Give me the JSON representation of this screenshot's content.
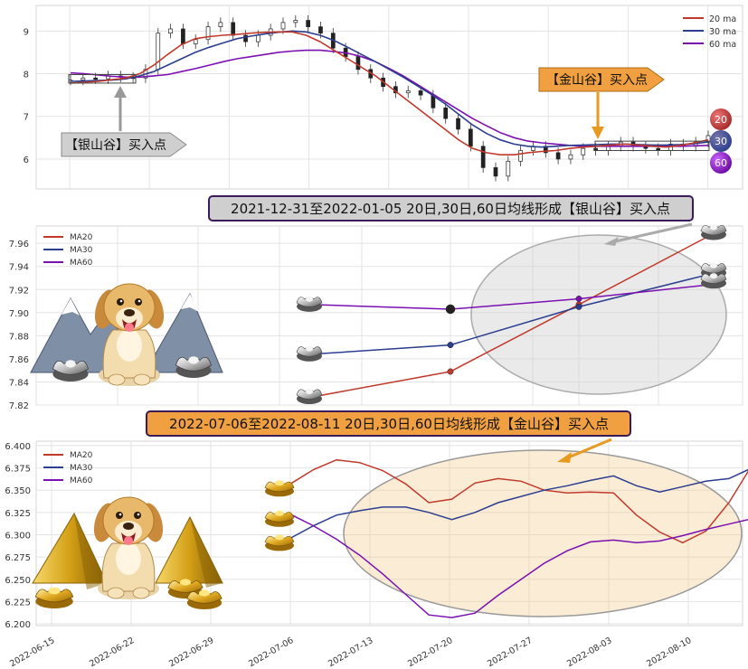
{
  "colors": {
    "ma20": "#c0392b",
    "ma30": "#2c3e8f",
    "ma60": "#7b10b0",
    "silver_banner": "#cfcfcf",
    "gold_banner": "#f0a040",
    "grid": "#e3e3e3"
  },
  "chart_data": [
    {
      "type": "candlestick",
      "name": "overview",
      "ylim": [
        5.3,
        9.6
      ],
      "yticks": [
        "9",
        "8",
        "7",
        "6"
      ],
      "ytick_values": [
        9,
        8,
        7,
        6
      ],
      "legend": [
        "20 ma",
        "30 ma",
        "60 ma"
      ],
      "legend_position": "top-right",
      "ma20": [
        7.78,
        7.8,
        7.82,
        7.86,
        7.9,
        8.0,
        8.2,
        8.45,
        8.68,
        8.82,
        8.87,
        8.9,
        8.92,
        8.95,
        8.97,
        8.98,
        8.98,
        8.9,
        8.75,
        8.55,
        8.35,
        8.15,
        7.95,
        7.7,
        7.45,
        7.2,
        6.95,
        6.7,
        6.45,
        6.25,
        6.15,
        6.1,
        6.1,
        6.15,
        6.18,
        6.2,
        6.25,
        6.28,
        6.3,
        6.33,
        6.35,
        6.33,
        6.3,
        6.28,
        6.32,
        6.38,
        6.45
      ],
      "ma30": [
        7.82,
        7.83,
        7.84,
        7.85,
        7.88,
        7.95,
        8.05,
        8.2,
        8.35,
        8.5,
        8.62,
        8.72,
        8.82,
        8.88,
        8.93,
        8.97,
        9.0,
        8.98,
        8.9,
        8.78,
        8.62,
        8.45,
        8.28,
        8.1,
        7.92,
        7.72,
        7.52,
        7.3,
        7.05,
        6.8,
        6.6,
        6.45,
        6.35,
        6.3,
        6.28,
        6.3,
        6.32,
        6.33,
        6.34,
        6.35,
        6.35,
        6.34,
        6.33,
        6.33,
        6.34,
        6.36,
        6.4
      ],
      "ma60": [
        8.02,
        8.0,
        7.97,
        7.94,
        7.92,
        7.92,
        7.95,
        7.98,
        8.05,
        8.12,
        8.2,
        8.28,
        8.35,
        8.4,
        8.45,
        8.5,
        8.53,
        8.55,
        8.55,
        8.52,
        8.48,
        8.4,
        8.28,
        8.12,
        7.95,
        7.75,
        7.55,
        7.35,
        7.15,
        6.95,
        6.78,
        6.62,
        6.5,
        6.42,
        6.38,
        6.35,
        6.32,
        6.3,
        6.3,
        6.3,
        6.3,
        6.3,
        6.3,
        6.3,
        6.3,
        6.31,
        6.32
      ],
      "candles_close": [
        7.85,
        7.9,
        7.88,
        7.95,
        7.92,
        7.9,
        8.1,
        8.95,
        9.05,
        8.7,
        8.8,
        9.1,
        9.2,
        8.9,
        8.75,
        8.9,
        9.05,
        9.2,
        9.25,
        9.1,
        8.95,
        8.6,
        8.4,
        8.1,
        7.9,
        7.7,
        7.55,
        7.6,
        7.5,
        7.2,
        6.95,
        6.7,
        6.3,
        5.8,
        5.6,
        5.95,
        6.2,
        6.3,
        6.15,
        6.0,
        6.1,
        6.25,
        6.2,
        6.3,
        6.4,
        6.3,
        6.25,
        6.2,
        6.35,
        6.3,
        6.4,
        6.55
      ],
      "ma_end_labels": [
        "20",
        "30",
        "60"
      ],
      "annotations": [
        {
          "text": "【银山谷】买入点",
          "kind": "silver",
          "x_index": 3
        },
        {
          "text": "【金山谷】买入点",
          "kind": "gold",
          "x_index": 40
        }
      ]
    },
    {
      "type": "line",
      "name": "silver_valley",
      "title": "2021-12-31至2022-01-05 20日,30日,60日均线形成【银山谷】买入点",
      "ylim": [
        7.82,
        7.975
      ],
      "yticks": [
        "7.96",
        "7.94",
        "7.92",
        "7.90",
        "7.88",
        "7.86",
        "7.84",
        "7.82"
      ],
      "ytick_values": [
        7.96,
        7.94,
        7.92,
        7.9,
        7.88,
        7.86,
        7.84,
        7.82
      ],
      "legend": [
        "MA20",
        "MA30",
        "MA60"
      ],
      "legend_position": "top-left",
      "x": [
        0,
        1,
        2,
        3
      ],
      "series": [
        {
          "name": "MA20",
          "values": [
            7.827,
            7.849,
            7.907,
            7.966
          ]
        },
        {
          "name": "MA30",
          "values": [
            7.864,
            7.872,
            7.905,
            7.933
          ]
        },
        {
          "name": "MA60",
          "values": [
            7.907,
            7.903,
            7.912,
            7.924
          ]
        }
      ]
    },
    {
      "type": "line",
      "name": "gold_valley",
      "title": "2022-07-06至2022-08-11 20日,30日,60日均线形成【金山谷】买入点",
      "ylim": [
        6.198,
        6.405
      ],
      "yticks": [
        "6.400",
        "6.375",
        "6.350",
        "6.325",
        "6.300",
        "6.275",
        "6.250",
        "6.225",
        "6.200"
      ],
      "ytick_values": [
        6.4,
        6.375,
        6.35,
        6.325,
        6.3,
        6.275,
        6.25,
        6.225,
        6.2
      ],
      "xticks": [
        "2022-06-15",
        "2022-06-22",
        "2022-06-29",
        "2022-07-06",
        "2022-07-13",
        "2022-07-20",
        "2022-07-27",
        "2022-08-03",
        "2022-08-10"
      ],
      "legend": [
        "MA20",
        "MA30",
        "MA60"
      ],
      "legend_position": "top-left",
      "x_start_day": 21,
      "series": [
        {
          "name": "MA20",
          "values": [
            6.357,
            6.373,
            6.384,
            6.381,
            6.372,
            6.357,
            6.336,
            6.34,
            6.358,
            6.363,
            6.36,
            6.35,
            6.347,
            6.348,
            6.347,
            6.322,
            6.303,
            6.291,
            6.304,
            6.336,
            6.378
          ]
        },
        {
          "name": "MA30",
          "values": [
            6.296,
            6.31,
            6.322,
            6.327,
            6.331,
            6.331,
            6.325,
            6.317,
            6.325,
            6.336,
            6.343,
            6.35,
            6.355,
            6.361,
            6.366,
            6.355,
            6.348,
            6.354,
            6.36,
            6.363,
            6.375
          ]
        },
        {
          "name": "MA60",
          "values": [
            6.323,
            6.31,
            6.295,
            6.277,
            6.256,
            6.233,
            6.21,
            6.207,
            6.212,
            6.232,
            6.25,
            6.268,
            6.282,
            6.292,
            6.294,
            6.291,
            6.293,
            6.299,
            6.306,
            6.312,
            6.318
          ]
        }
      ]
    }
  ]
}
